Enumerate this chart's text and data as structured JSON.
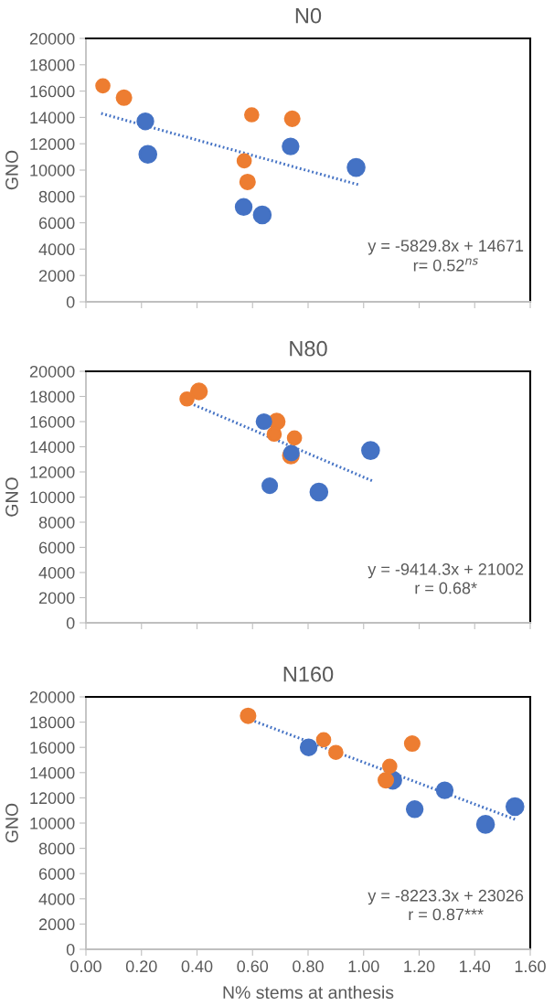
{
  "chart_data": [
    {
      "type": "scatter",
      "title": "N0",
      "ylabel": "GNO",
      "xlim": [
        0,
        1.6
      ],
      "ylim": [
        0,
        20000
      ],
      "xticks": [
        0,
        0.2,
        0.4,
        0.6,
        0.8,
        1.0,
        1.2,
        1.4,
        1.6
      ],
      "yticks": [
        0,
        2000,
        4000,
        6000,
        8000,
        10000,
        12000,
        14000,
        16000,
        18000,
        20000
      ],
      "tick_labels": "y",
      "grid": false,
      "marker": "circle",
      "series": [
        {
          "color": "#4472c4",
          "x": [
            0.223,
            0.635,
            0.973
          ],
          "values": [
            11200,
            6600,
            10200
          ]
        },
        {
          "color": "#4472c4",
          "x": [
            0.214,
            0.737,
            0.568
          ],
          "values": [
            13700,
            11800,
            7200
          ]
        },
        {
          "color": "#ed7d31",
          "x": [
            0.137,
            0.743,
            0.582
          ],
          "values": [
            15500,
            13900,
            9100
          ]
        },
        {
          "color": "#ed7d31",
          "x": [
            0.061,
            0.597,
            0.57
          ],
          "values": [
            16400,
            14200,
            10700
          ]
        },
        {
          "type": "line",
          "color": "#4472c4",
          "line_style": "dotted",
          "marker": "none",
          "x": [
            0.055,
            0.98
          ],
          "values": [
            14300,
            8900
          ]
        }
      ],
      "annotations": [
        "y = -5829.8x + 14671",
        "r= 0.52$^{ns}$"
      ]
    },
    {
      "type": "scatter",
      "title": "N80",
      "ylabel": "GNO",
      "xlim": [
        0,
        1.6
      ],
      "ylim": [
        0,
        20000
      ],
      "xticks": [
        0,
        0.2,
        0.4,
        0.6,
        0.8,
        1.0,
        1.2,
        1.4,
        1.6
      ],
      "yticks": [
        0,
        2000,
        4000,
        6000,
        8000,
        10000,
        12000,
        14000,
        16000,
        18000,
        20000
      ],
      "tick_labels": "y",
      "grid": false,
      "marker": "circle",
      "series": [
        {
          "color": "#4472c4",
          "x": [
            0.839,
            1.025
          ],
          "values": [
            10400,
            13700
          ]
        },
        {
          "color": "#ed7d31",
          "x": [
            0.407,
            0.687,
            0.738
          ],
          "values": [
            18400,
            16000,
            13300
          ]
        },
        {
          "color": "#4472c4",
          "x": [
            0.641,
            0.74,
            0.662
          ],
          "values": [
            16000,
            13500,
            10900
          ]
        },
        {
          "color": "#ed7d31",
          "x": [
            0.364,
            0.678,
            0.751
          ],
          "values": [
            17800,
            15000,
            14700
          ]
        },
        {
          "type": "line",
          "color": "#4472c4",
          "line_style": "dotted",
          "marker": "none",
          "x": [
            0.361,
            1.03
          ],
          "values": [
            17600,
            11300
          ]
        }
      ],
      "annotations": [
        "y = -9414.3x + 21002",
        "r = 0.68*"
      ]
    },
    {
      "type": "scatter",
      "title": "N160",
      "xlabel": "N% stems at anthesis",
      "ylabel": "GNO",
      "xlim": [
        0,
        1.6
      ],
      "ylim": [
        0,
        20000
      ],
      "xticks": [
        {
          "value": 0,
          "label": "0.00"
        },
        {
          "value": 0.2,
          "label": "0.20"
        },
        {
          "value": 0.4,
          "label": "0.40"
        },
        {
          "value": 0.6,
          "label": "0.60"
        },
        {
          "value": 0.8,
          "label": "0.80"
        },
        {
          "value": 1.0,
          "label": "1.00"
        },
        {
          "value": 1.2,
          "label": "1.20"
        },
        {
          "value": 1.4,
          "label": "1.40"
        },
        {
          "value": 1.6,
          "label": "1.60"
        }
      ],
      "yticks": [
        0,
        2000,
        4000,
        6000,
        8000,
        10000,
        12000,
        14000,
        16000,
        18000,
        20000
      ],
      "grid": false,
      "marker": "circle",
      "series": [
        {
          "color": "#4472c4",
          "x": [
            1.105,
            1.439,
            1.545
          ],
          "values": [
            13400,
            9900,
            11300
          ]
        },
        {
          "color": "#4472c4",
          "x": [
            0.802,
            1.292,
            1.184
          ],
          "values": [
            16000,
            12600,
            11100
          ]
        },
        {
          "color": "#ed7d31",
          "x": [
            0.584,
            1.175,
            1.08
          ],
          "values": [
            18500,
            16300,
            13400
          ]
        },
        {
          "color": "#ed7d31",
          "x": [
            0.856,
            0.9,
            1.094
          ],
          "values": [
            16600,
            15600,
            14500
          ]
        },
        {
          "type": "line",
          "color": "#4472c4",
          "line_style": "dotted",
          "marker": "none",
          "x": [
            0.579,
            1.545
          ],
          "values": [
            18300,
            10300
          ]
        }
      ],
      "annotations": [
        "y = -8223.3x + 23026",
        "r = 0.87***"
      ]
    }
  ]
}
